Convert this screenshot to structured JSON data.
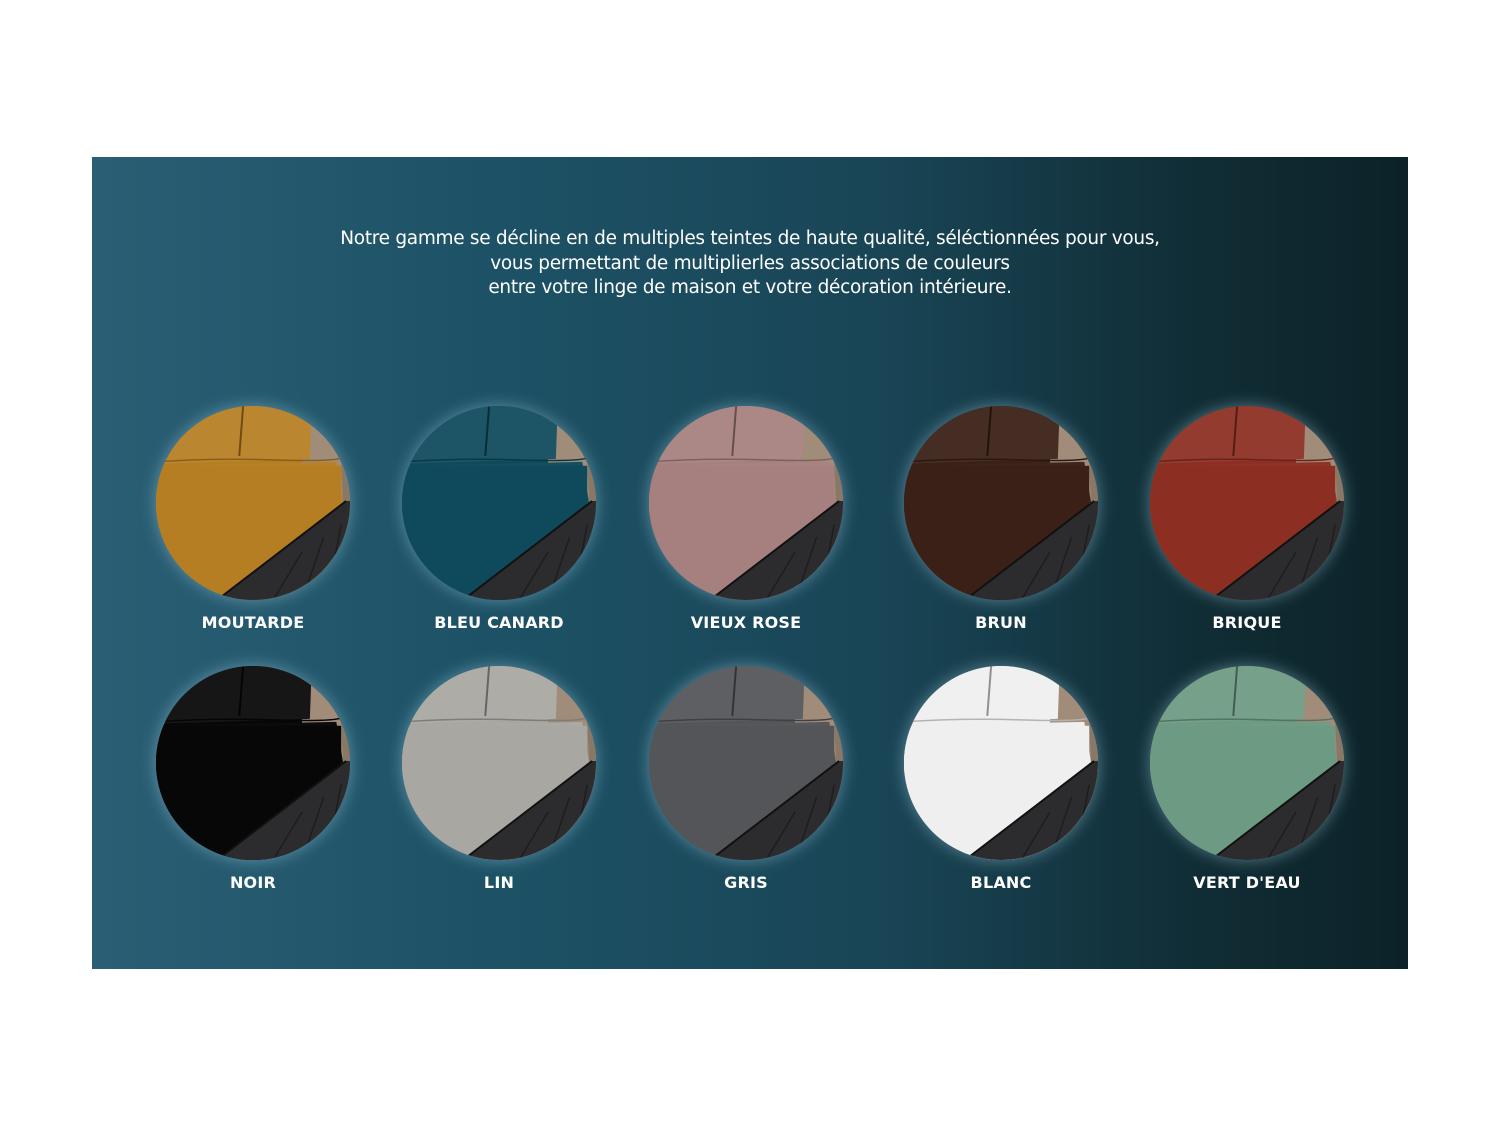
{
  "intro": {
    "lines": [
      "Notre gamme se décline en de multiples teintes de haute qualité, séléctionnées pour vous,",
      "vous permettant de multiplierles associations de couleurs",
      "entre votre linge de maison et votre décoration intérieure."
    ]
  },
  "colors": [
    {
      "label": "MOUTARDE",
      "color": "#b67e22"
    },
    {
      "label": "BLEU CANARD",
      "color": "#0f4a5c"
    },
    {
      "label": "VIEUX ROSE",
      "color": "#a6807e"
    },
    {
      "label": "BRUN",
      "color": "#3a2016"
    },
    {
      "label": "BRIQUE",
      "color": "#8c2f22"
    },
    {
      "label": "NOIR",
      "color": "#070707"
    },
    {
      "label": "LIN",
      "color": "#a9a7a1"
    },
    {
      "label": "GRIS",
      "color": "#545559"
    },
    {
      "label": "BLANC",
      "color": "#efefef"
    },
    {
      "label": "VERT D'EAU",
      "color": "#6d9a82"
    }
  ]
}
